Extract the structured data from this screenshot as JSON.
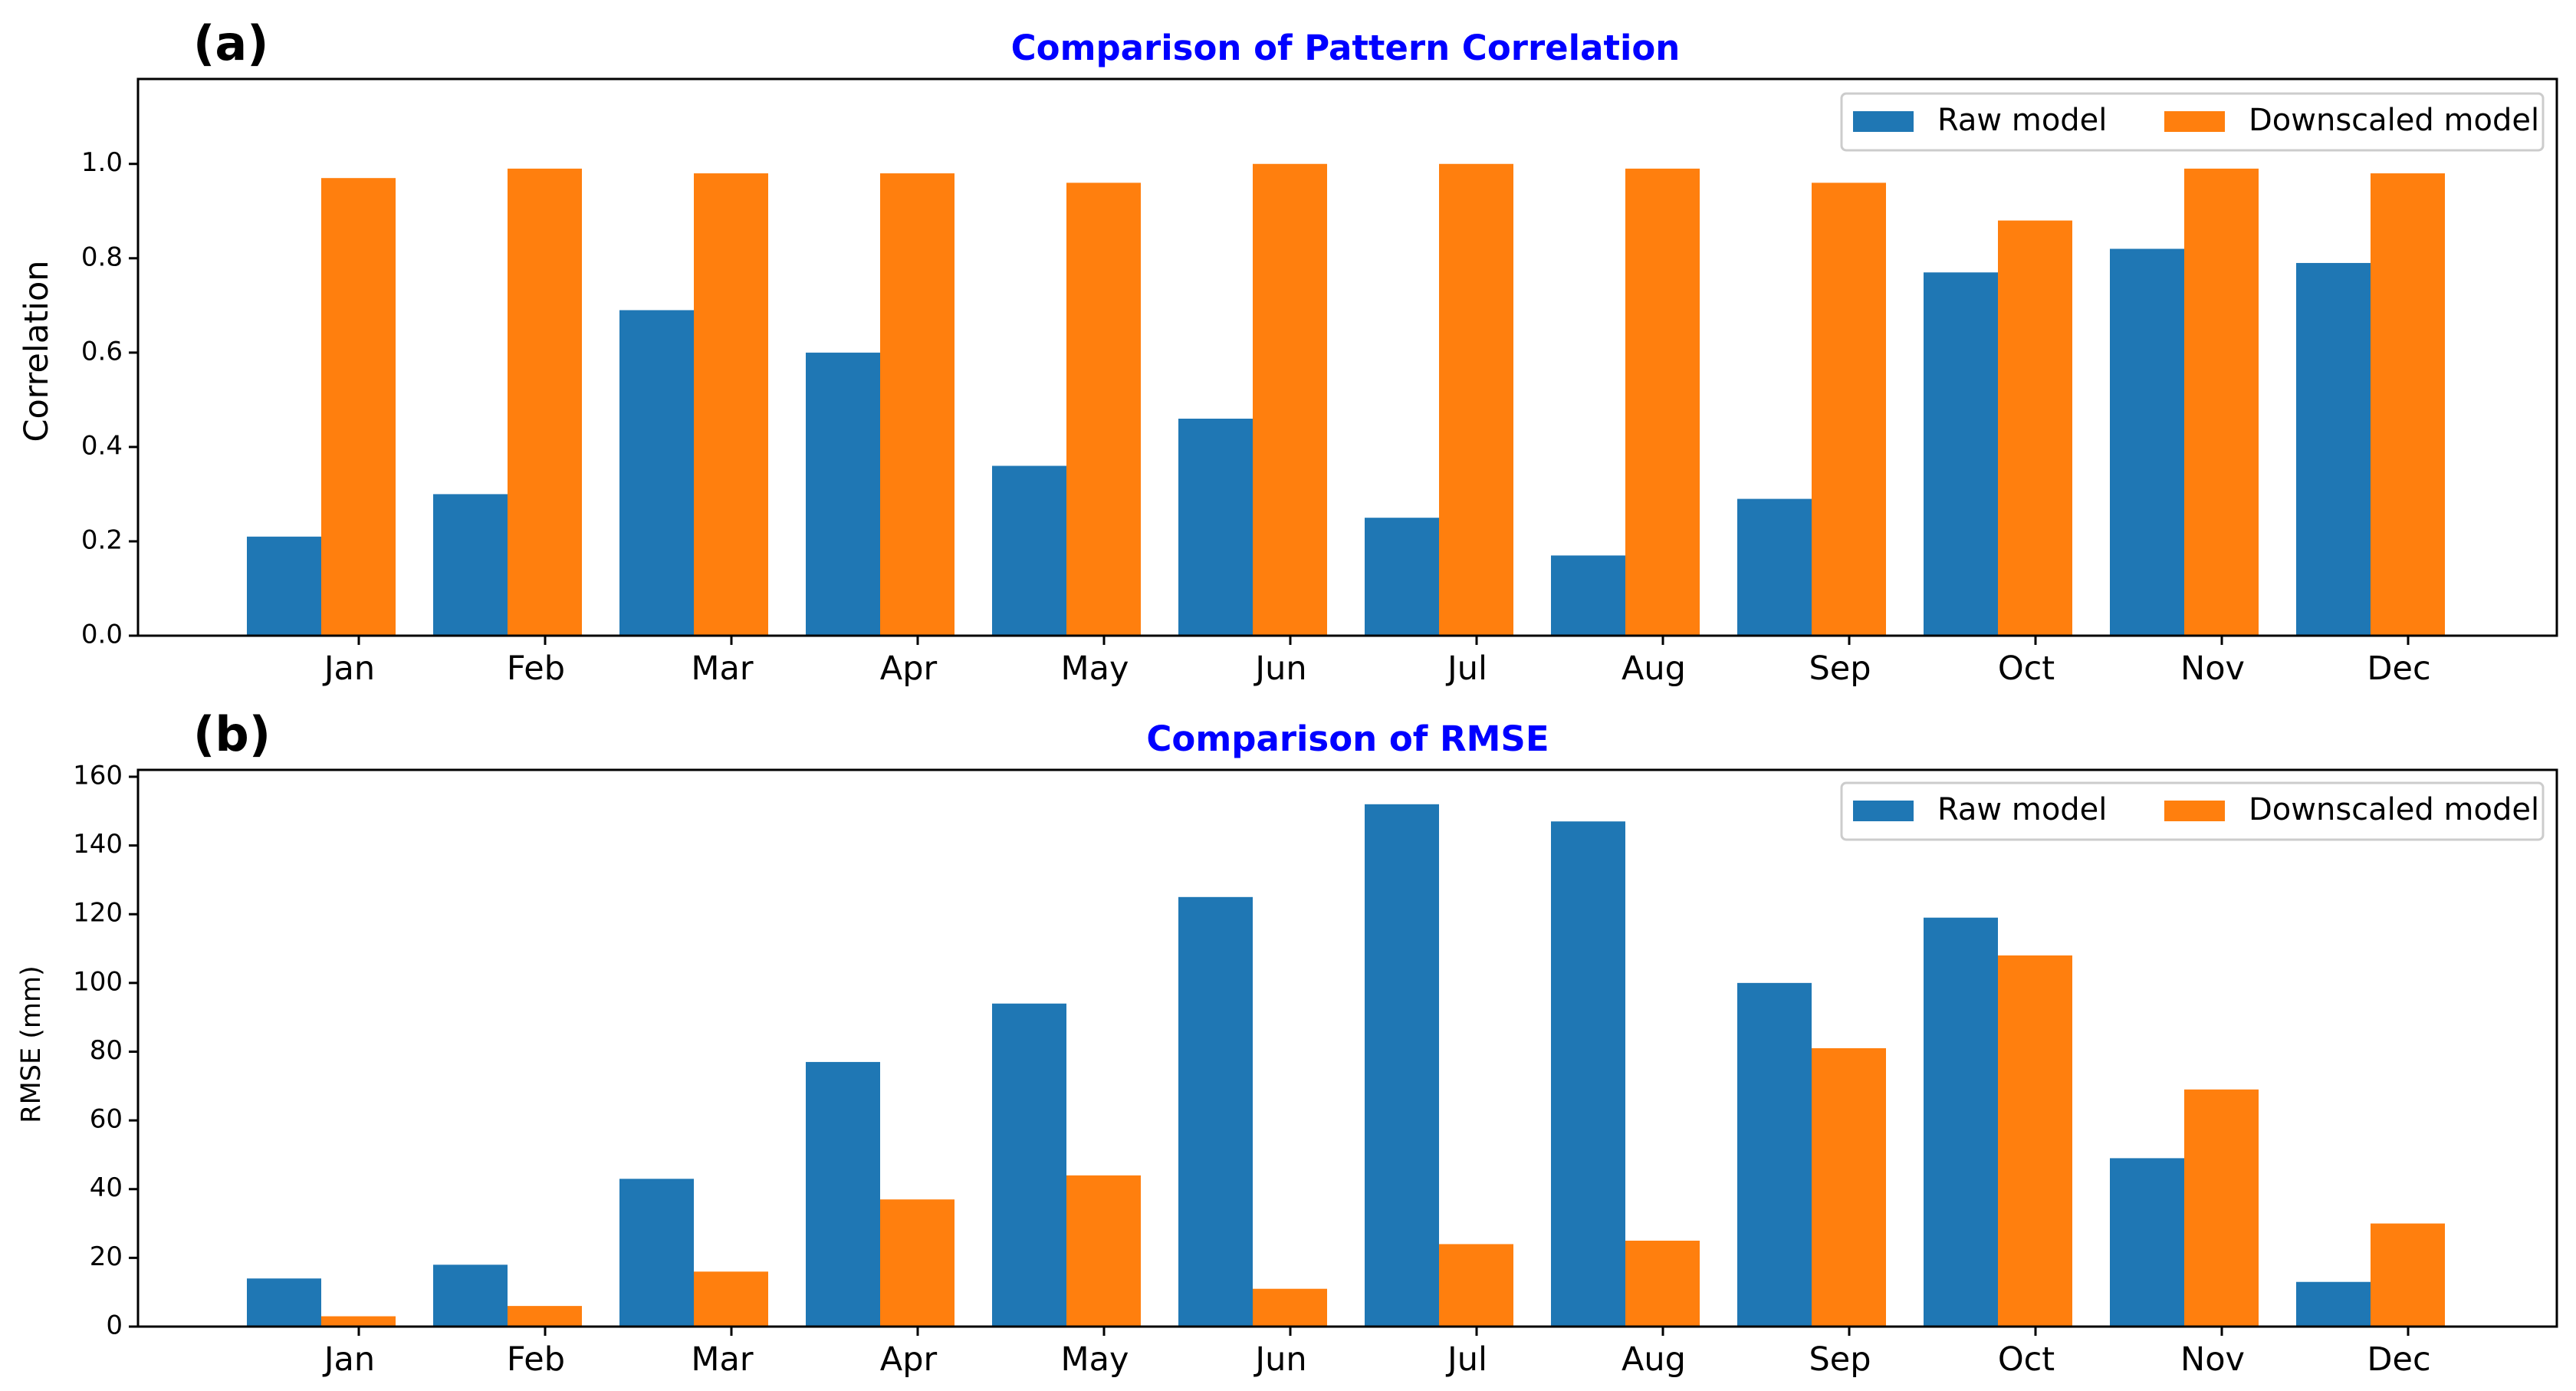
{
  "chart_data": [
    {
      "type": "bar",
      "panel_label": "(a)",
      "title": "Comparison of Pattern Correlation",
      "title_color": "#0000ff",
      "xlabel": "",
      "ylabel": "Correlation",
      "categories": [
        "Jan",
        "Feb",
        "Mar",
        "Apr",
        "May",
        "Jun",
        "Jul",
        "Aug",
        "Sep",
        "Oct",
        "Nov",
        "Dec"
      ],
      "ylim": [
        0,
        1.18
      ],
      "yticks": [
        0.0,
        0.2,
        0.4,
        0.6,
        0.8,
        1.0
      ],
      "ytick_labels": [
        "0.0",
        "0.2",
        "0.4",
        "0.6",
        "0.8",
        "1.0"
      ],
      "legend_placement": "top-right",
      "series": [
        {
          "name": "Raw model",
          "color": "#1f77b4",
          "values": [
            0.21,
            0.3,
            0.69,
            0.6,
            0.36,
            0.46,
            0.25,
            0.17,
            0.29,
            0.77,
            0.82,
            0.79
          ]
        },
        {
          "name": "Downscaled model",
          "color": "#ff7f0e",
          "values": [
            0.97,
            0.99,
            0.98,
            0.98,
            0.96,
            1.0,
            1.0,
            0.99,
            0.96,
            0.88,
            0.99,
            0.98
          ]
        }
      ]
    },
    {
      "type": "bar",
      "panel_label": "(b)",
      "title": "Comparison of RMSE",
      "title_color": "#0000ff",
      "xlabel": "",
      "ylabel": "RMSE (mm)",
      "categories": [
        "Jan",
        "Feb",
        "Mar",
        "Apr",
        "May",
        "Jun",
        "Jul",
        "Aug",
        "Sep",
        "Oct",
        "Nov",
        "Dec"
      ],
      "ylim": [
        0,
        162
      ],
      "yticks": [
        0,
        20,
        40,
        60,
        80,
        100,
        120,
        140,
        160
      ],
      "ytick_labels": [
        "0",
        "20",
        "40",
        "60",
        "80",
        "100",
        "120",
        "140",
        "160"
      ],
      "legend_placement": "top-right",
      "series": [
        {
          "name": "Raw model",
          "color": "#1f77b4",
          "values": [
            14,
            18,
            43,
            77,
            94,
            125,
            152,
            147,
            100,
            119,
            49,
            13
          ]
        },
        {
          "name": "Downscaled model",
          "color": "#ff7f0e",
          "values": [
            3,
            6,
            16,
            37,
            44,
            11,
            24,
            25,
            81,
            108,
            69,
            30
          ]
        }
      ]
    }
  ]
}
